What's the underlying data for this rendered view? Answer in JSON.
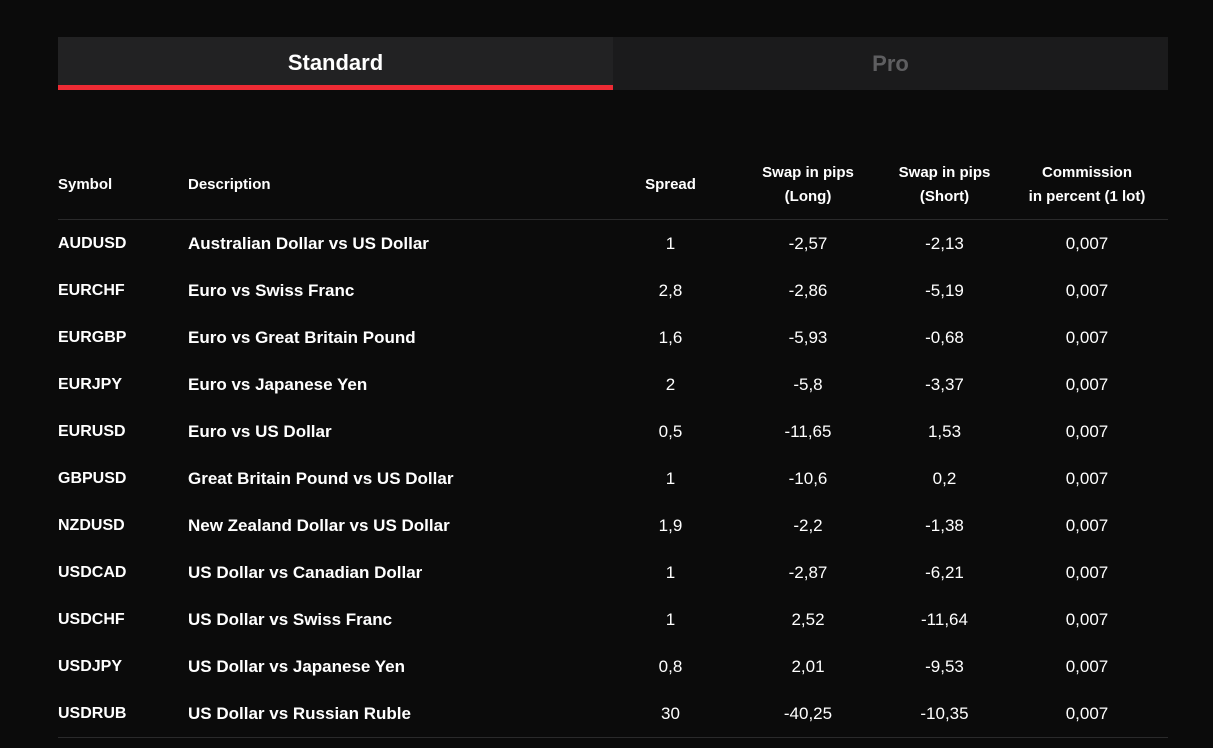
{
  "tabs": [
    {
      "label": "Standard",
      "active": true
    },
    {
      "label": "Pro",
      "active": false
    }
  ],
  "colors": {
    "background": "#0b0b0b",
    "accent": "#ee2b34",
    "tab_inactive_text": "#5e5e60"
  },
  "table": {
    "headers": {
      "symbol": "Symbol",
      "description": "Description",
      "spread": "Spread",
      "swap_long_line1": "Swap in pips",
      "swap_long_line2": "(Long)",
      "swap_short_line1": "Swap in pips",
      "swap_short_line2": "(Short)",
      "commission_line1": "Commission",
      "commission_line2": "in percent (1 lot)"
    },
    "rows": [
      {
        "symbol": "AUDUSD",
        "description": "Australian Dollar vs US Dollar",
        "spread": "1",
        "swap_long": "-2,57",
        "swap_short": "-2,13",
        "commission": "0,007"
      },
      {
        "symbol": "EURCHF",
        "description": "Euro vs Swiss Franc",
        "spread": "2,8",
        "swap_long": "-2,86",
        "swap_short": "-5,19",
        "commission": "0,007"
      },
      {
        "symbol": "EURGBP",
        "description": "Euro vs Great Britain Pound",
        "spread": "1,6",
        "swap_long": "-5,93",
        "swap_short": "-0,68",
        "commission": "0,007"
      },
      {
        "symbol": "EURJPY",
        "description": "Euro vs Japanese Yen",
        "spread": "2",
        "swap_long": "-5,8",
        "swap_short": "-3,37",
        "commission": "0,007"
      },
      {
        "symbol": "EURUSD",
        "description": "Euro vs US Dollar",
        "spread": "0,5",
        "swap_long": "-11,65",
        "swap_short": "1,53",
        "commission": "0,007"
      },
      {
        "symbol": "GBPUSD",
        "description": "Great Britain Pound vs US Dollar",
        "spread": "1",
        "swap_long": "-10,6",
        "swap_short": "0,2",
        "commission": "0,007"
      },
      {
        "symbol": "NZDUSD",
        "description": "New Zealand Dollar vs US Dollar",
        "spread": "1,9",
        "swap_long": "-2,2",
        "swap_short": "-1,38",
        "commission": "0,007"
      },
      {
        "symbol": "USDCAD",
        "description": "US Dollar vs Canadian Dollar",
        "spread": "1",
        "swap_long": "-2,87",
        "swap_short": "-6,21",
        "commission": "0,007"
      },
      {
        "symbol": "USDCHF",
        "description": "US Dollar vs Swiss Franc",
        "spread": "1",
        "swap_long": "2,52",
        "swap_short": "-11,64",
        "commission": "0,007"
      },
      {
        "symbol": "USDJPY",
        "description": "US Dollar vs Japanese Yen",
        "spread": "0,8",
        "swap_long": "2,01",
        "swap_short": "-9,53",
        "commission": "0,007"
      },
      {
        "symbol": "USDRUB",
        "description": "US Dollar vs Russian Ruble",
        "spread": "30",
        "swap_long": "-40,25",
        "swap_short": "-10,35",
        "commission": "0,007"
      }
    ]
  }
}
